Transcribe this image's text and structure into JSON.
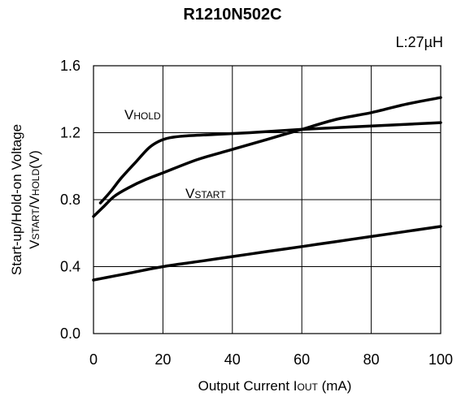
{
  "chart_data": {
    "type": "line",
    "title": "R1210N502C",
    "note": "L:27µH",
    "xlabel": {
      "main": "Output Current I",
      "sub": "OUT",
      "unit": " (mA)"
    },
    "ylabel": {
      "line1": "Start-up/Hold-on Voltage",
      "line2": [
        {
          "text": "V",
          "sub": false
        },
        {
          "text": "START",
          "sub": true
        },
        {
          "text": "/V",
          "sub": false
        },
        {
          "text": "HOLD",
          "sub": true
        },
        {
          "text": "(V)",
          "sub": false
        }
      ]
    },
    "xlim": [
      0,
      100
    ],
    "ylim": [
      0,
      1.6
    ],
    "xticks": [
      0,
      20,
      40,
      60,
      80,
      100
    ],
    "xtick_labels": [
      "0",
      "20",
      "40",
      "60",
      "80",
      "100"
    ],
    "yticks": [
      0,
      0.4,
      0.8,
      1.2,
      1.6
    ],
    "ytick_labels": [
      "0.0",
      "0.4",
      "0.8",
      "1.2",
      "1.6"
    ],
    "grid": true,
    "series": [
      {
        "name": "VHOLD",
        "label": {
          "main": "V",
          "sub": "HOLD"
        },
        "x": [
          2,
          5,
          8,
          12,
          16,
          19,
          22,
          26,
          35,
          45,
          60,
          80,
          100
        ],
        "y": [
          0.78,
          0.85,
          0.93,
          1.02,
          1.11,
          1.15,
          1.17,
          1.18,
          1.19,
          1.2,
          1.22,
          1.24,
          1.26
        ]
      },
      {
        "name": "VSTART",
        "label": {
          "main": "V",
          "sub": "START"
        },
        "x": [
          0,
          3,
          6,
          10,
          15,
          20,
          30,
          40,
          50,
          60,
          70,
          80,
          90,
          100
        ],
        "y": [
          0.7,
          0.76,
          0.82,
          0.87,
          0.92,
          0.96,
          1.04,
          1.1,
          1.16,
          1.22,
          1.28,
          1.32,
          1.37,
          1.41
        ]
      },
      {
        "name": "",
        "x": [
          0,
          10,
          20,
          30,
          40,
          50,
          60,
          70,
          80,
          90,
          100
        ],
        "y": [
          0.32,
          0.36,
          0.4,
          0.43,
          0.46,
          0.49,
          0.52,
          0.55,
          0.58,
          0.61,
          0.64
        ]
      }
    ]
  }
}
